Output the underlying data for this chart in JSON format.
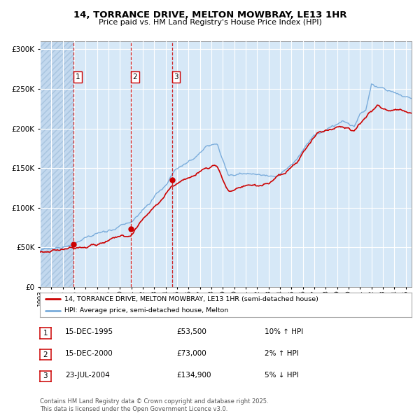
{
  "title_line1": "14, TORRANCE DRIVE, MELTON MOWBRAY, LE13 1HR",
  "title_line2": "Price paid vs. HM Land Registry's House Price Index (HPI)",
  "transactions": [
    {
      "num": 1,
      "date_str": "15-DEC-1995",
      "date_dec": 1995.96,
      "price": 53500,
      "hpi_pct": "10% ↑ HPI"
    },
    {
      "num": 2,
      "date_str": "15-DEC-2000",
      "date_dec": 2000.96,
      "price": 73000,
      "hpi_pct": "2% ↑ HPI"
    },
    {
      "num": 3,
      "date_str": "23-JUL-2004",
      "date_dec": 2004.55,
      "price": 134900,
      "hpi_pct": "5% ↓ HPI"
    }
  ],
  "ylim": [
    0,
    310000
  ],
  "xlim_start": 1993.0,
  "xlim_end": 2025.5,
  "hatch_end": 1995.96,
  "fig_bg_color": "#ffffff",
  "chart_bg_color": "#d6e8f7",
  "hatch_face_color": "#c2d8ee",
  "hatch_edge_color": "#a8c4df",
  "grid_color": "#ffffff",
  "red_line_color": "#cc0000",
  "blue_line_color": "#7aacdb",
  "dashed_line_color": "#cc0000",
  "marker_color": "#cc0000",
  "footer_text": "Contains HM Land Registry data © Crown copyright and database right 2025.\nThis data is licensed under the Open Government Licence v3.0.",
  "legend_line1": "14, TORRANCE DRIVE, MELTON MOWBRAY, LE13 1HR (semi-detached house)",
  "legend_line2": "HPI: Average price, semi-detached house, Melton",
  "ytick_labels": [
    "£0",
    "£50K",
    "£100K",
    "£150K",
    "£200K",
    "£250K",
    "£300K"
  ],
  "ytick_values": [
    0,
    50000,
    100000,
    150000,
    200000,
    250000,
    300000
  ],
  "xtick_years": [
    1993,
    1994,
    1995,
    1996,
    1997,
    1998,
    1999,
    2000,
    2001,
    2002,
    2003,
    2004,
    2005,
    2006,
    2007,
    2008,
    2009,
    2010,
    2011,
    2012,
    2013,
    2014,
    2015,
    2016,
    2017,
    2018,
    2019,
    2020,
    2021,
    2022,
    2023,
    2024,
    2025
  ],
  "red_kp_year": [
    1993.0,
    1994.0,
    1995.0,
    1995.96,
    1997.0,
    1998.5,
    1999.5,
    2000.96,
    2002.0,
    2003.5,
    2004.55,
    2005.5,
    2006.5,
    2007.5,
    2008.5,
    2009.5,
    2010.5,
    2011.5,
    2012.5,
    2013.5,
    2014.5,
    2015.5,
    2016.5,
    2017.5,
    2018.5,
    2019.5,
    2020.5,
    2021.5,
    2022.5,
    2023.5,
    2024.5,
    2025.3
  ],
  "red_kp_val": [
    44000,
    47000,
    50000,
    53500,
    59000,
    63000,
    67000,
    73000,
    93000,
    115000,
    134900,
    142000,
    148000,
    158000,
    162000,
    130000,
    133000,
    134000,
    132000,
    135000,
    142000,
    152000,
    174000,
    188000,
    193000,
    198000,
    193000,
    212000,
    228000,
    222000,
    222000,
    222000
  ],
  "blue_kp_year": [
    1993.0,
    1994.0,
    1995.0,
    1995.96,
    1997.0,
    1998.5,
    1999.5,
    2001.0,
    2002.5,
    2003.5,
    2004.55,
    2005.5,
    2006.5,
    2007.5,
    2008.5,
    2009.5,
    2010.5,
    2011.5,
    2012.5,
    2013.5,
    2014.5,
    2015.0,
    2015.5,
    2016.5,
    2017.0,
    2017.5,
    2018.5,
    2019.5,
    2020.5,
    2021.0,
    2021.5,
    2022.0,
    2022.5,
    2023.0,
    2023.5,
    2024.0,
    2024.5,
    2025.3
  ],
  "blue_kp_val": [
    46000,
    48000,
    51000,
    54000,
    60000,
    65000,
    69000,
    77000,
    98000,
    118000,
    138000,
    148000,
    155000,
    170000,
    175000,
    134000,
    137000,
    139000,
    137000,
    139000,
    146000,
    152000,
    158000,
    180000,
    190000,
    195000,
    200000,
    204000,
    200000,
    215000,
    220000,
    255000,
    248000,
    248000,
    243000,
    242000,
    238000,
    232000
  ]
}
